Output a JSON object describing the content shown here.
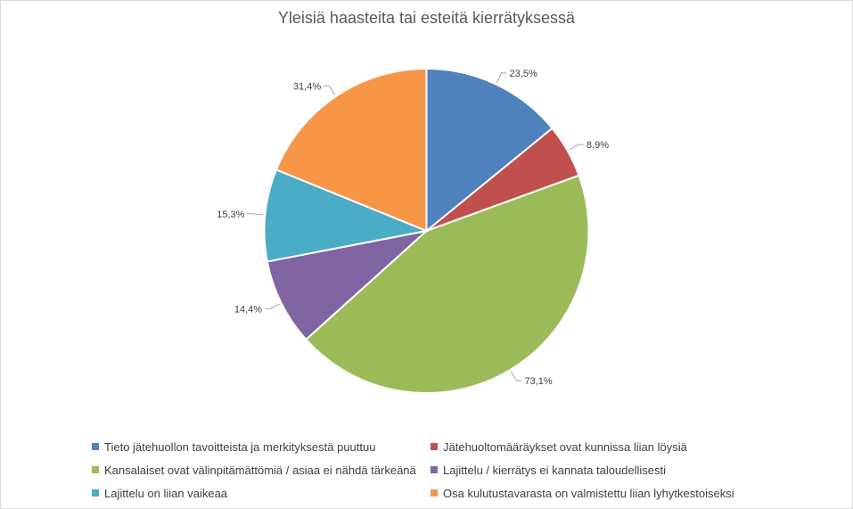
{
  "chart_data": {
    "type": "pie",
    "title": "Yleisiä haasteita tai esteitä kierrätyksessä",
    "labels": [
      "Tieto jätehuollon tavoitteista ja merkityksestä puuttuu",
      "Jätehuoltomääräykset ovat kunnissa liian löysiä",
      "Kansalaiset ovat välinpitämättömiä / asiaa ei nähdä tärkeänä",
      "Lajittelu / kierrätys ei kannata taloudellisesti",
      "Lajittelu on liian vaikeaa",
      "Osa kulutustavarasta on valmistettu liian lyhytkestoiseksi"
    ],
    "values": [
      23.5,
      8.9,
      73.1,
      14.4,
      15.3,
      31.4
    ],
    "data_labels": [
      "23,5%",
      "8,9%",
      "73,1%",
      "14,4%",
      "15,3%",
      "31,4%"
    ],
    "colors": [
      "#4f81bd",
      "#c0504d",
      "#9bbb59",
      "#8064a2",
      "#4bacc6",
      "#f79646"
    ],
    "legend_position": "bottom"
  }
}
